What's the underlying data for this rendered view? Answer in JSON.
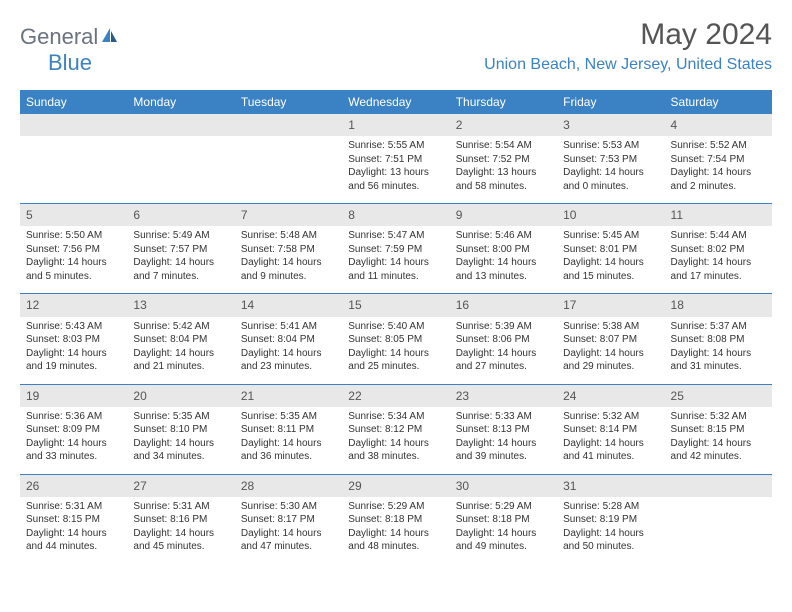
{
  "logo": {
    "text1": "General",
    "text2": "Blue"
  },
  "title": "May 2024",
  "location": "Union Beach, New Jersey, United States",
  "weekdays": [
    "Sunday",
    "Monday",
    "Tuesday",
    "Wednesday",
    "Thursday",
    "Friday",
    "Saturday"
  ],
  "colors": {
    "header_bg": "#3b82c4",
    "daynum_bg": "#e8e8e8",
    "accent": "#3b82c4",
    "text": "#333333",
    "muted": "#555555"
  },
  "weeks": [
    [
      null,
      null,
      null,
      {
        "day": "1",
        "sunrise": "Sunrise: 5:55 AM",
        "sunset": "Sunset: 7:51 PM",
        "daylight1": "Daylight: 13 hours",
        "daylight2": "and 56 minutes."
      },
      {
        "day": "2",
        "sunrise": "Sunrise: 5:54 AM",
        "sunset": "Sunset: 7:52 PM",
        "daylight1": "Daylight: 13 hours",
        "daylight2": "and 58 minutes."
      },
      {
        "day": "3",
        "sunrise": "Sunrise: 5:53 AM",
        "sunset": "Sunset: 7:53 PM",
        "daylight1": "Daylight: 14 hours",
        "daylight2": "and 0 minutes."
      },
      {
        "day": "4",
        "sunrise": "Sunrise: 5:52 AM",
        "sunset": "Sunset: 7:54 PM",
        "daylight1": "Daylight: 14 hours",
        "daylight2": "and 2 minutes."
      }
    ],
    [
      {
        "day": "5",
        "sunrise": "Sunrise: 5:50 AM",
        "sunset": "Sunset: 7:56 PM",
        "daylight1": "Daylight: 14 hours",
        "daylight2": "and 5 minutes."
      },
      {
        "day": "6",
        "sunrise": "Sunrise: 5:49 AM",
        "sunset": "Sunset: 7:57 PM",
        "daylight1": "Daylight: 14 hours",
        "daylight2": "and 7 minutes."
      },
      {
        "day": "7",
        "sunrise": "Sunrise: 5:48 AM",
        "sunset": "Sunset: 7:58 PM",
        "daylight1": "Daylight: 14 hours",
        "daylight2": "and 9 minutes."
      },
      {
        "day": "8",
        "sunrise": "Sunrise: 5:47 AM",
        "sunset": "Sunset: 7:59 PM",
        "daylight1": "Daylight: 14 hours",
        "daylight2": "and 11 minutes."
      },
      {
        "day": "9",
        "sunrise": "Sunrise: 5:46 AM",
        "sunset": "Sunset: 8:00 PM",
        "daylight1": "Daylight: 14 hours",
        "daylight2": "and 13 minutes."
      },
      {
        "day": "10",
        "sunrise": "Sunrise: 5:45 AM",
        "sunset": "Sunset: 8:01 PM",
        "daylight1": "Daylight: 14 hours",
        "daylight2": "and 15 minutes."
      },
      {
        "day": "11",
        "sunrise": "Sunrise: 5:44 AM",
        "sunset": "Sunset: 8:02 PM",
        "daylight1": "Daylight: 14 hours",
        "daylight2": "and 17 minutes."
      }
    ],
    [
      {
        "day": "12",
        "sunrise": "Sunrise: 5:43 AM",
        "sunset": "Sunset: 8:03 PM",
        "daylight1": "Daylight: 14 hours",
        "daylight2": "and 19 minutes."
      },
      {
        "day": "13",
        "sunrise": "Sunrise: 5:42 AM",
        "sunset": "Sunset: 8:04 PM",
        "daylight1": "Daylight: 14 hours",
        "daylight2": "and 21 minutes."
      },
      {
        "day": "14",
        "sunrise": "Sunrise: 5:41 AM",
        "sunset": "Sunset: 8:04 PM",
        "daylight1": "Daylight: 14 hours",
        "daylight2": "and 23 minutes."
      },
      {
        "day": "15",
        "sunrise": "Sunrise: 5:40 AM",
        "sunset": "Sunset: 8:05 PM",
        "daylight1": "Daylight: 14 hours",
        "daylight2": "and 25 minutes."
      },
      {
        "day": "16",
        "sunrise": "Sunrise: 5:39 AM",
        "sunset": "Sunset: 8:06 PM",
        "daylight1": "Daylight: 14 hours",
        "daylight2": "and 27 minutes."
      },
      {
        "day": "17",
        "sunrise": "Sunrise: 5:38 AM",
        "sunset": "Sunset: 8:07 PM",
        "daylight1": "Daylight: 14 hours",
        "daylight2": "and 29 minutes."
      },
      {
        "day": "18",
        "sunrise": "Sunrise: 5:37 AM",
        "sunset": "Sunset: 8:08 PM",
        "daylight1": "Daylight: 14 hours",
        "daylight2": "and 31 minutes."
      }
    ],
    [
      {
        "day": "19",
        "sunrise": "Sunrise: 5:36 AM",
        "sunset": "Sunset: 8:09 PM",
        "daylight1": "Daylight: 14 hours",
        "daylight2": "and 33 minutes."
      },
      {
        "day": "20",
        "sunrise": "Sunrise: 5:35 AM",
        "sunset": "Sunset: 8:10 PM",
        "daylight1": "Daylight: 14 hours",
        "daylight2": "and 34 minutes."
      },
      {
        "day": "21",
        "sunrise": "Sunrise: 5:35 AM",
        "sunset": "Sunset: 8:11 PM",
        "daylight1": "Daylight: 14 hours",
        "daylight2": "and 36 minutes."
      },
      {
        "day": "22",
        "sunrise": "Sunrise: 5:34 AM",
        "sunset": "Sunset: 8:12 PM",
        "daylight1": "Daylight: 14 hours",
        "daylight2": "and 38 minutes."
      },
      {
        "day": "23",
        "sunrise": "Sunrise: 5:33 AM",
        "sunset": "Sunset: 8:13 PM",
        "daylight1": "Daylight: 14 hours",
        "daylight2": "and 39 minutes."
      },
      {
        "day": "24",
        "sunrise": "Sunrise: 5:32 AM",
        "sunset": "Sunset: 8:14 PM",
        "daylight1": "Daylight: 14 hours",
        "daylight2": "and 41 minutes."
      },
      {
        "day": "25",
        "sunrise": "Sunrise: 5:32 AM",
        "sunset": "Sunset: 8:15 PM",
        "daylight1": "Daylight: 14 hours",
        "daylight2": "and 42 minutes."
      }
    ],
    [
      {
        "day": "26",
        "sunrise": "Sunrise: 5:31 AM",
        "sunset": "Sunset: 8:15 PM",
        "daylight1": "Daylight: 14 hours",
        "daylight2": "and 44 minutes."
      },
      {
        "day": "27",
        "sunrise": "Sunrise: 5:31 AM",
        "sunset": "Sunset: 8:16 PM",
        "daylight1": "Daylight: 14 hours",
        "daylight2": "and 45 minutes."
      },
      {
        "day": "28",
        "sunrise": "Sunrise: 5:30 AM",
        "sunset": "Sunset: 8:17 PM",
        "daylight1": "Daylight: 14 hours",
        "daylight2": "and 47 minutes."
      },
      {
        "day": "29",
        "sunrise": "Sunrise: 5:29 AM",
        "sunset": "Sunset: 8:18 PM",
        "daylight1": "Daylight: 14 hours",
        "daylight2": "and 48 minutes."
      },
      {
        "day": "30",
        "sunrise": "Sunrise: 5:29 AM",
        "sunset": "Sunset: 8:18 PM",
        "daylight1": "Daylight: 14 hours",
        "daylight2": "and 49 minutes."
      },
      {
        "day": "31",
        "sunrise": "Sunrise: 5:28 AM",
        "sunset": "Sunset: 8:19 PM",
        "daylight1": "Daylight: 14 hours",
        "daylight2": "and 50 minutes."
      },
      null
    ]
  ]
}
